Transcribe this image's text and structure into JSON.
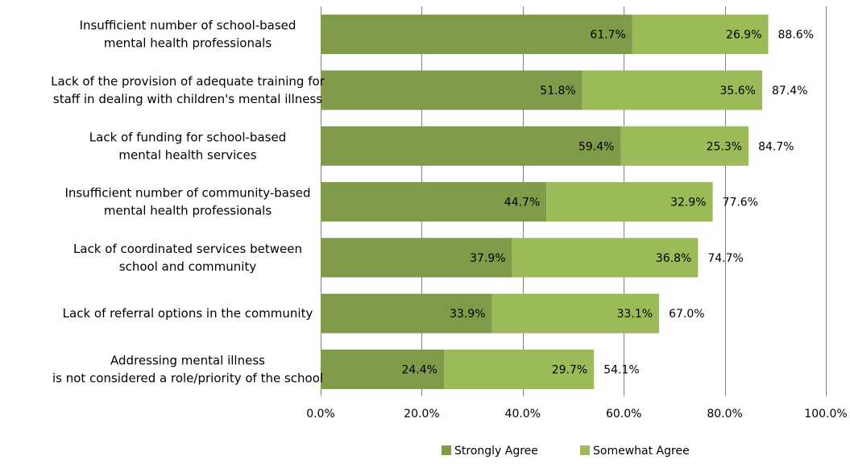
{
  "chart_data": {
    "type": "bar",
    "orientation": "horizontal",
    "stacked": true,
    "categories": [
      [
        "Insufficient number of school-based",
        "mental health professionals"
      ],
      [
        "Lack of the provision of adequate training for",
        "staff in dealing with children's mental illness"
      ],
      [
        "Lack of funding for school-based",
        "mental health services"
      ],
      [
        "Insufficient number of community-based",
        "mental health professionals"
      ],
      [
        "Lack of coordinated services between",
        "school and community"
      ],
      [
        "Lack of referral options in the community"
      ],
      [
        "Addressing mental illness",
        "is not considered a role/priority of the school"
      ]
    ],
    "series": [
      {
        "name": "Strongly Agree",
        "color": "#7f9a48",
        "values": [
          61.7,
          51.8,
          59.4,
          44.7,
          37.9,
          33.9,
          24.4
        ],
        "labels": [
          "61.7%",
          "51.8%",
          "59.4%",
          "44.7%",
          "37.9%",
          "33.9%",
          "24.4%"
        ]
      },
      {
        "name": "Somewhat Agree",
        "color": "#9bbb59",
        "values": [
          26.9,
          35.6,
          25.3,
          32.9,
          36.8,
          33.1,
          29.7
        ],
        "labels": [
          "26.9%",
          "35.6%",
          "25.3%",
          "32.9%",
          "36.8%",
          "33.1%",
          "29.7%"
        ]
      }
    ],
    "totals": [
      88.6,
      87.4,
      84.7,
      77.6,
      74.7,
      67.0,
      54.1
    ],
    "total_labels": [
      "88.6%",
      "87.4%",
      "84.7%",
      "77.6%",
      "74.7%",
      "67.0%",
      "54.1%"
    ],
    "xlim": [
      0,
      100
    ],
    "xticks": [
      0,
      20,
      40,
      60,
      80,
      100
    ],
    "xtick_labels": [
      "0.0%",
      "20.0%",
      "40.0%",
      "60.0%",
      "80.0%",
      "100.0%"
    ],
    "grid": true,
    "legend_position": "bottom",
    "title": "",
    "xlabel": "",
    "ylabel": ""
  }
}
